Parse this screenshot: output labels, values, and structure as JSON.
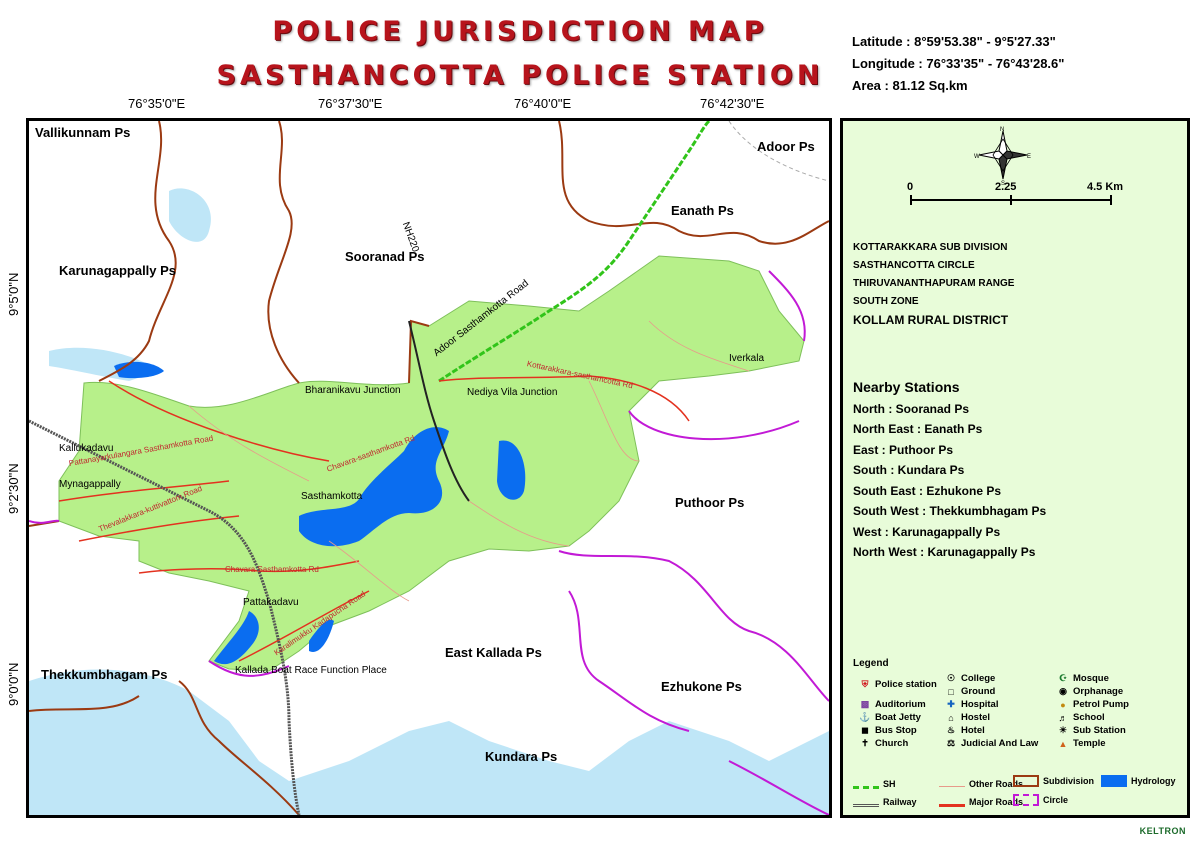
{
  "header": {
    "title_line1": "POLICE JURISDICTION MAP",
    "title_line2": "SASTHANCOTTA POLICE STATION"
  },
  "coordinates": {
    "latitude": "Latitude : 8°59'53.38\"  - 9°5'27.33\"",
    "longitude": "Longitude : 76°33'35\"  - 76°43'28.6\"",
    "area": "Area : 81.12 Sq.km"
  },
  "graticule": {
    "x_ticks": [
      "76°35'0\"E",
      "76°37'30\"E",
      "76°40'0\"E",
      "76°42'30\"E"
    ],
    "y_ticks": [
      "9°5'0\"N",
      "9°2'30\"N",
      "9°0'0\"N"
    ]
  },
  "map": {
    "neighbour_stations": [
      "Vallikunnam Ps",
      "Adoor Ps",
      "Eanath Ps",
      "Karunagappally Ps",
      "Sooranad Ps",
      "Puthoor Ps",
      "East Kallada Ps",
      "Ezhukone Ps",
      "Thekkumbhagam Ps",
      "Kundara Ps"
    ],
    "places": [
      "Kallukadavu",
      "Mynagappally",
      "Sasthamkotta",
      "Pattakadavu",
      "Kallada Boat Race Function Place",
      "Bharanikavu Junction",
      "Nediya Vila Junction",
      "Iverkala"
    ],
    "roads": [
      "NH220",
      "Adoor Sasthamkotta Road",
      "Kottarakkara-sasthamcotta Rd",
      "Chavara-sasthamkotta Rd",
      "Pattanayarkulangara Sasthamkotta Road",
      "Thevalakkara-kuttivattom Road",
      "Chavara Sasthamkotta Rd",
      "Karalimukku Kadapucha Road"
    ],
    "colors": {
      "jurisdiction_fill": "#b7f08a",
      "hydrology": "#0a6df0",
      "subdivision": "#9b3a12",
      "circle": "#c21ad6",
      "sh": "#31c41a",
      "water_light": "#bfe6f7"
    }
  },
  "panel": {
    "compass_labels": {
      "n": "N",
      "s": "S",
      "e": "E",
      "w": "W"
    },
    "scale": {
      "zero": "0",
      "mid": "2.25",
      "end": "4.5 Km"
    },
    "admin": {
      "subdivision": "KOTTARAKKARA SUB DIVISION",
      "circle": "SASTHANCOTTA CIRCLE",
      "range": "THIRUVANANTHAPURAM RANGE",
      "zone": "SOUTH ZONE",
      "district": "KOLLAM RURAL  DISTRICT"
    },
    "nearby": {
      "title": "Nearby Stations",
      "items": [
        "North : Sooranad Ps",
        "North East : Eanath Ps",
        "East : Puthoor Ps",
        "South : Kundara Ps",
        "South East : Ezhukone Ps",
        "South West : Thekkumbhagam Ps",
        "West : Karunagappally Ps",
        "North West : Karunagappally Ps"
      ]
    },
    "legend": {
      "title": "Legend",
      "police_station": "Police station",
      "col1": [
        "Auditorium",
        "Boat Jetty",
        "Bus Stop",
        "Church"
      ],
      "col2": [
        "College",
        "Ground",
        "Hospital",
        "Hostel",
        "Hotel",
        "Judicial And Law"
      ],
      "col3": [
        "Mosque",
        "Orphanage",
        "Petrol Pump",
        "School",
        "Sub Station",
        "Temple"
      ],
      "lines": {
        "sh": "SH",
        "railway": "Railway",
        "other_roads": "Other Roads",
        "major_roads": "Major Roads",
        "subdivision": "Subdivision",
        "circle": "Circle",
        "hydrology": "Hydrology"
      }
    },
    "brand": "KELTRON"
  }
}
